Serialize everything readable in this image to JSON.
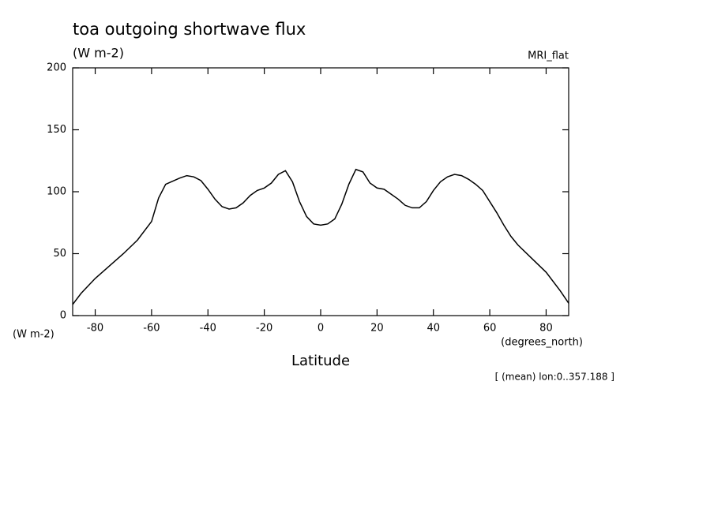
{
  "chart_data": {
    "type": "line",
    "title": "toa outgoing shortwave flux",
    "units_label": "(W m-2)",
    "dataset_label": "MRI_flat",
    "y_axis_units": "(W m-2)",
    "x_axis_units": "(degrees_north)",
    "xlabel": "Latitude",
    "annotation": "[ (mean) lon:0..357.188 ]",
    "x": [
      -88,
      -85,
      -80,
      -75,
      -70,
      -65,
      -60,
      -57.5,
      -55,
      -50,
      -47.5,
      -45,
      -42.5,
      -40,
      -37.5,
      -35,
      -32.5,
      -30,
      -27.5,
      -25,
      -22.5,
      -20,
      -17.5,
      -15,
      -12.5,
      -10,
      -7.5,
      -5,
      -2.5,
      0,
      2.5,
      5,
      7.5,
      10,
      12.5,
      15,
      17.5,
      20,
      22.5,
      25,
      27.5,
      30,
      32.5,
      35,
      37.5,
      40,
      42.5,
      45,
      47.5,
      50,
      52.5,
      55,
      57.5,
      60,
      62.5,
      65,
      67.5,
      70,
      75,
      80,
      85,
      88
    ],
    "series": [
      {
        "name": "toa outgoing shortwave flux",
        "color": "#000000",
        "values": [
          9,
          18,
          30,
          40,
          50,
          61,
          76,
          95,
          106,
          111,
          113,
          112,
          109,
          102,
          94,
          88,
          86,
          87,
          91,
          97,
          101,
          103,
          107,
          114,
          117,
          108,
          92,
          80,
          74,
          73,
          74,
          78,
          90,
          106,
          118,
          116,
          107,
          103,
          102,
          98,
          94,
          89,
          87,
          87,
          92,
          101,
          108,
          112,
          114,
          113,
          110,
          106,
          101,
          92,
          83,
          73,
          64,
          57,
          46,
          35,
          20,
          10
        ]
      }
    ],
    "xlim": [
      -88,
      88
    ],
    "ylim": [
      0,
      200
    ],
    "xticks": [
      -80,
      -60,
      -40,
      -20,
      0,
      20,
      40,
      60,
      80
    ],
    "yticks": [
      0,
      50,
      100,
      150,
      200
    ]
  }
}
